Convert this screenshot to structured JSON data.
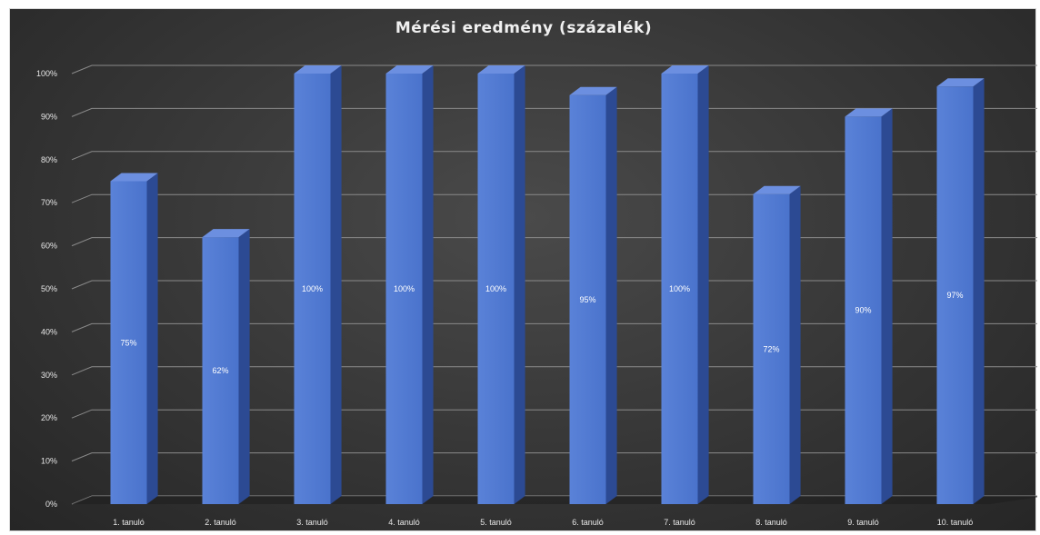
{
  "chart_data": {
    "type": "bar",
    "title": "Mérési eredmény (százalék)",
    "xlabel": "",
    "ylabel": "",
    "categories": [
      "1. tanuló",
      "2. tanuló",
      "3. tanuló",
      "4. tanuló",
      "5. tanuló",
      "6. tanuló",
      "7. tanuló",
      "8. tanuló",
      "9. tanuló",
      "10. tanuló"
    ],
    "values": [
      75,
      62,
      100,
      100,
      100,
      95,
      100,
      72,
      90,
      97
    ],
    "data_labels": [
      "75%",
      "62%",
      "100%",
      "100%",
      "100%",
      "95%",
      "100%",
      "72%",
      "90%",
      "97%"
    ],
    "yticks": [
      "0%",
      "10%",
      "20%",
      "30%",
      "40%",
      "50%",
      "60%",
      "70%",
      "80%",
      "90%",
      "100%"
    ],
    "ylim": [
      0,
      100
    ],
    "grid": true,
    "legend": "none",
    "style": "3d-column",
    "colors": {
      "bar_front": "#4a73cc",
      "bar_side": "#2c4a93",
      "bar_top": "#6c8fe0",
      "background": "#363636",
      "gridline": "#8a8a8a",
      "text": "#e6e6e6"
    }
  }
}
